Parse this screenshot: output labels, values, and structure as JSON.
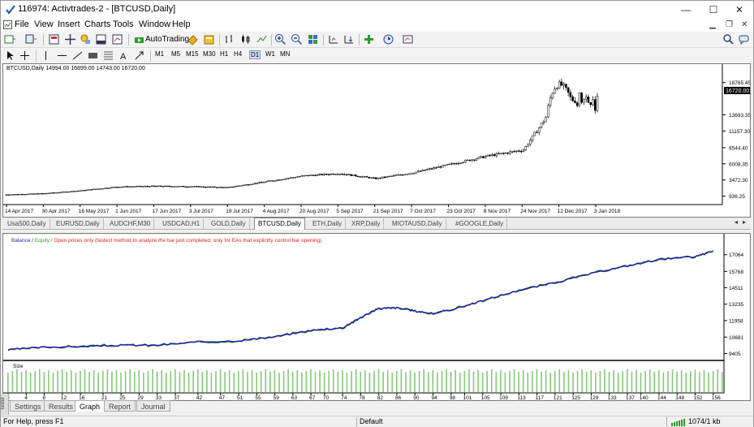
{
  "window": {
    "title": "116974: Activtrades-2 - [BTCUSD,Daily]",
    "controls": [
      "—",
      "☐",
      "✕"
    ]
  },
  "menu": [
    "File",
    "View",
    "Insert",
    "Charts",
    "Tools",
    "Window",
    "Help"
  ],
  "toolbar": {
    "autotrading_label": "AutoTrading",
    "timeframes": [
      "M1",
      "M5",
      "M15",
      "M30",
      "H1",
      "H4",
      "D1",
      "W1",
      "MN"
    ]
  },
  "price_chart": {
    "info": "BTCUSD,Daily  14994.00 16899.00 14743.00 16720.00",
    "current_price": "16720.00",
    "y_ticks": [
      "18765.45",
      "13693.35",
      "11157.30",
      "8544.40",
      "6008.35",
      "3472.30",
      "936.25"
    ],
    "x_ticks": [
      "14 Apr 2017",
      "30 Apr 2017",
      "16 May 2017",
      "1 Jun 2017",
      "17 Jun 2017",
      "3 Jul 2017",
      "19 Jul 2017",
      "4 Aug 2017",
      "20 Aug 2017",
      "5 Sep 2017",
      "21 Sep 2017",
      "7 Oct 2017",
      "23 Oct 2017",
      "8 Nov 2017",
      "24 Nov 2017",
      "12 Dec 2017",
      "3 Jan 2018"
    ]
  },
  "chart_tabs": [
    "Usa500,Daily",
    "EURUSD,Daily",
    "AUDCHF,M30",
    "USDCAD,H1",
    "GOLD,Daily",
    "BTCUSD,Daily",
    "ETH,Daily",
    "XRP,Daily",
    "MIOTAUSD,Daily",
    "#GOOGLE,Daily"
  ],
  "active_chart_tab": "BTCUSD,Daily",
  "tester_graph": {
    "legend_balance": "Balance",
    "legend_sep": " / ",
    "legend_equity": "Equity",
    "legend_note": " / Open prices only (fastest method to analyze the bar just completed, only for EAs that explicitly control bar opening)",
    "colors": {
      "balance": "#1f1fa0",
      "equity": "#2ca02c",
      "note": "#e02020"
    },
    "y_ticks": [
      "17064",
      "15768",
      "14511",
      "13235",
      "11958",
      "10681",
      "9405"
    ],
    "size_label": "Size",
    "x_ticks": [
      "0",
      "4",
      "8",
      "12",
      "16",
      "21",
      "25",
      "29",
      "33",
      "37",
      "42",
      "47",
      "51",
      "55",
      "59",
      "63",
      "67",
      "70",
      "74",
      "78",
      "82",
      "86",
      "90",
      "94",
      "98",
      "101",
      "105",
      "109",
      "113",
      "117",
      "121",
      "125",
      "129",
      "133",
      "137",
      "140",
      "144",
      "148",
      "152",
      "156"
    ]
  },
  "bottom_tabs": [
    "Settings",
    "Results",
    "Graph",
    "Report",
    "Journal"
  ],
  "active_bottom_tab": "Graph",
  "side_label": "Tester",
  "status": {
    "help": "For Help, press F1",
    "profile": "Default",
    "traffic": "1074/1 kb"
  },
  "chart_data": [
    {
      "type": "candlestick",
      "title": "BTCUSD,Daily",
      "x_labels": [
        "14 Apr 2017",
        "30 Apr 2017",
        "16 May 2017",
        "1 Jun 2017",
        "17 Jun 2017",
        "3 Jul 2017",
        "19 Jul 2017",
        "4 Aug 2017",
        "20 Aug 2017",
        "5 Sep 2017",
        "21 Sep 2017",
        "7 Oct 2017",
        "23 Oct 2017",
        "8 Nov 2017",
        "24 Nov 2017",
        "12 Dec 2017",
        "3 Jan 2018"
      ],
      "close_approx": [
        1180,
        1350,
        1800,
        2400,
        2500,
        2450,
        2300,
        3200,
        4100,
        4500,
        3700,
        4600,
        5900,
        7200,
        8200,
        16500,
        15000
      ],
      "last": {
        "open": 14994.0,
        "high": 16899.0,
        "low": 14743.0,
        "close": 16720.0
      },
      "ylim": [
        936.25,
        20000
      ],
      "grid": false
    },
    {
      "type": "line",
      "title": "",
      "x_range": [
        0,
        158
      ],
      "series": [
        {
          "name": "Balance",
          "x": [
            0,
            8,
            16,
            25,
            33,
            42,
            51,
            59,
            67,
            74,
            78,
            82,
            86,
            90,
            94,
            98,
            105,
            113,
            121,
            129,
            137,
            144,
            152,
            156
          ],
          "values": [
            9700,
            9900,
            9950,
            10050,
            10050,
            10300,
            10400,
            10700,
            11200,
            11400,
            12200,
            12900,
            12950,
            12700,
            12500,
            12800,
            13500,
            14300,
            14900,
            15600,
            16200,
            16700,
            16900,
            17350
          ]
        }
      ],
      "ylim": [
        9000,
        17800
      ]
    },
    {
      "type": "bar",
      "title": "Size",
      "note": "uniform trade size bars, one per trade, 0–158"
    }
  ]
}
